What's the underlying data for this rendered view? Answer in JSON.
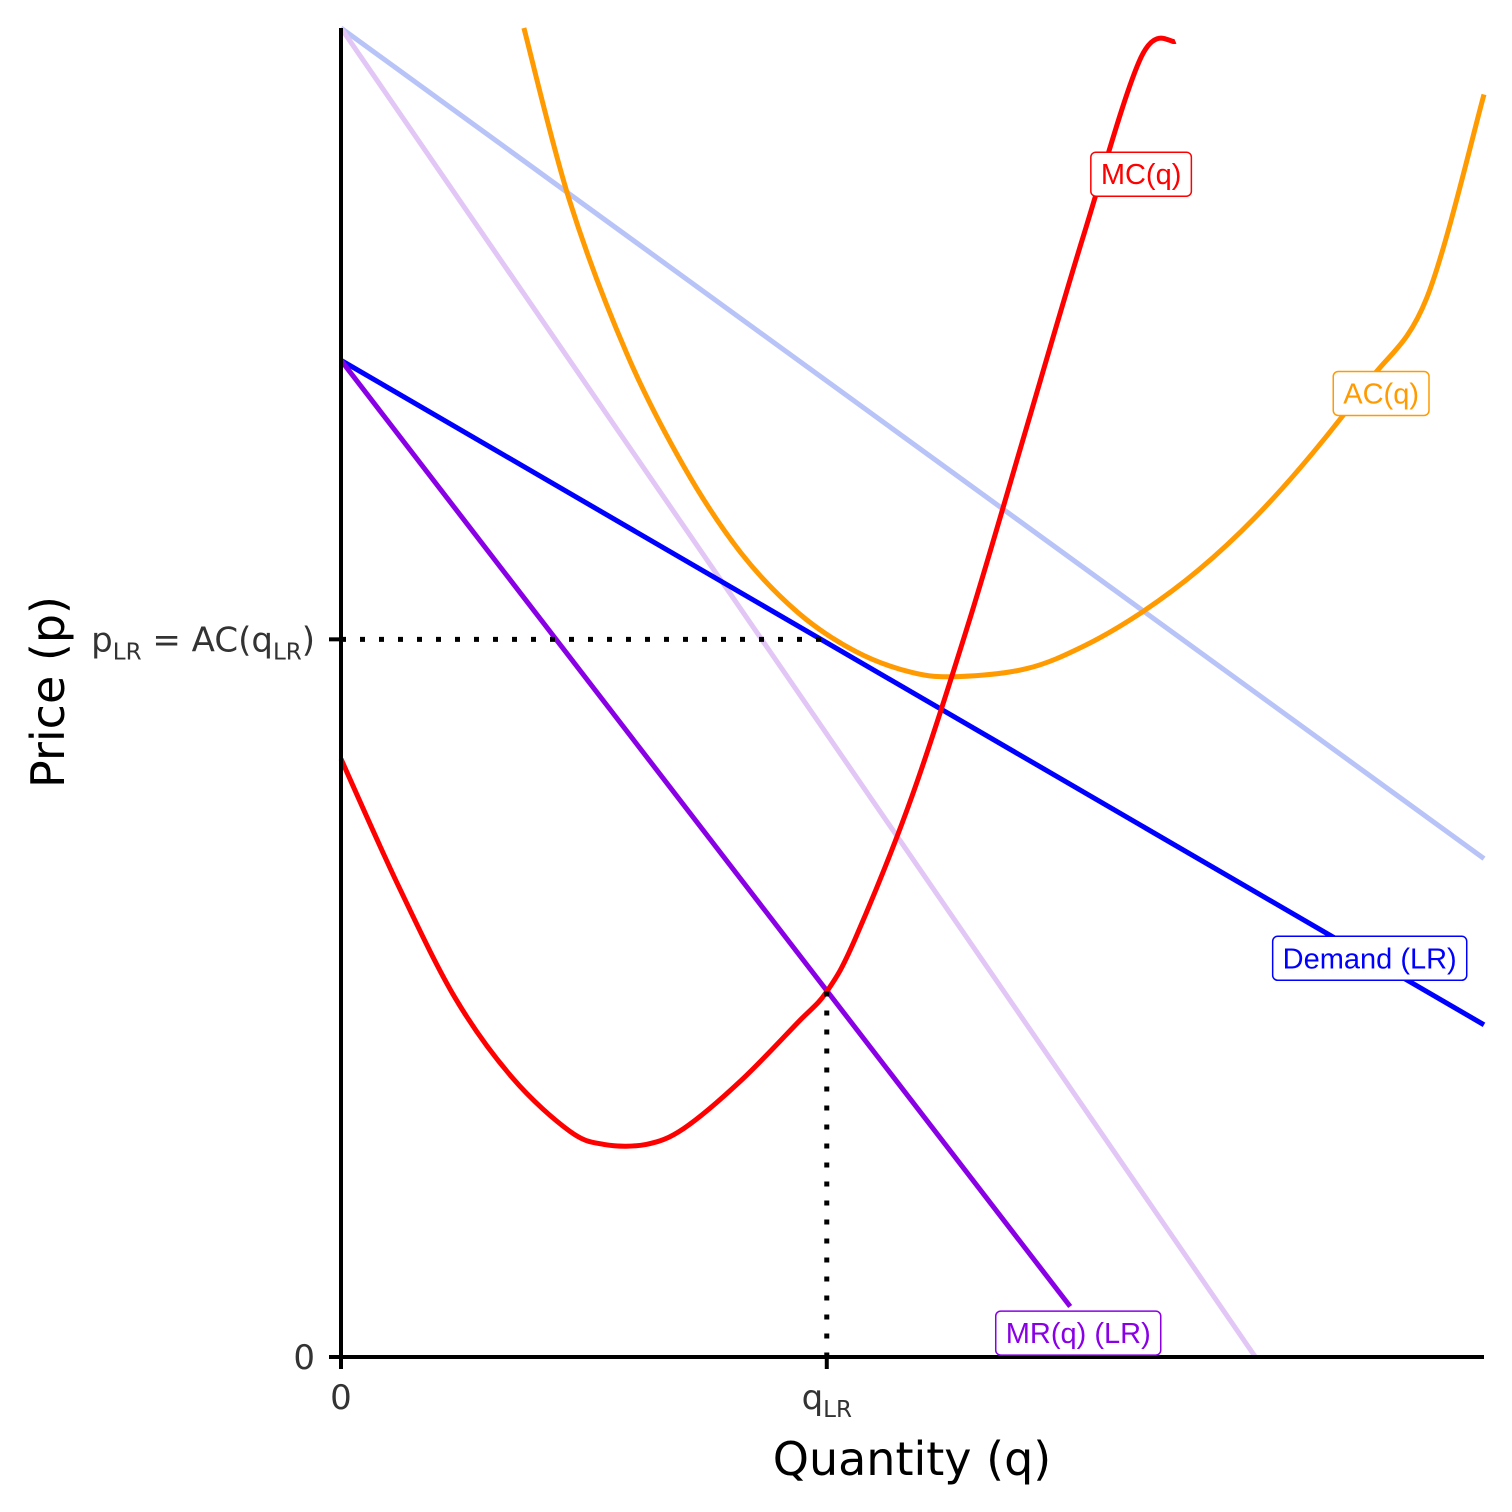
{
  "chart_data": {
    "type": "line",
    "title": "",
    "xlabel": "Quantity (q)",
    "ylabel": "Price (p)",
    "xlim": [
      0,
      10
    ],
    "ylim": [
      0,
      10
    ],
    "grid": false,
    "x_ticks": [
      {
        "value": 0,
        "main": "0",
        "sub": ""
      },
      {
        "value": 4.25,
        "main": "q",
        "sub": "LR"
      }
    ],
    "y_ticks": [
      {
        "value": 0,
        "label": "0"
      },
      {
        "value": 5.4,
        "label": "p_LR = AC(q_LR)"
      }
    ],
    "y_tick_parts": {
      "p": "p",
      "p_sub": "LR",
      "eq": " = AC(",
      "q": "q",
      "q_sub": "LR",
      "close": ")"
    },
    "reference_lines": [
      {
        "name": "p_LR",
        "from": [
          0,
          5.4
        ],
        "to": [
          4.25,
          5.4
        ],
        "style": "dotted"
      },
      {
        "name": "q_LR",
        "from": [
          4.25,
          2.75
        ],
        "to": [
          4.25,
          0
        ],
        "style": "dotted"
      }
    ],
    "series": [
      {
        "id": "demand_sr",
        "name": "",
        "color": "#b8c4f8",
        "x": [
          0,
          10
        ],
        "y": [
          10,
          3.75
        ]
      },
      {
        "id": "mr_sr",
        "name": "",
        "color": "#e2c6f5",
        "x": [
          0,
          8
        ],
        "y": [
          10,
          0
        ]
      },
      {
        "id": "demand_lr",
        "name": "Demand (LR)",
        "color": "#0000ff",
        "x": [
          0,
          10
        ],
        "y": [
          7.5,
          2.5
        ]
      },
      {
        "id": "mr_lr",
        "name": "MR(q) (LR)",
        "color": "#8a00e6",
        "x": [
          0,
          6.38
        ],
        "y": [
          7.5,
          0.38
        ]
      },
      {
        "id": "ac",
        "name": "AC(q)",
        "color": "#ff9a00",
        "x": [
          1.6,
          2.0,
          2.5,
          3.0,
          3.5,
          4.0,
          4.5,
          5.0,
          5.4,
          6.0,
          6.5,
          7.0,
          7.5,
          8.0,
          8.5,
          9.0,
          9.5,
          10.0
        ],
        "y": [
          10.0,
          8.7,
          7.55,
          6.7,
          6.05,
          5.6,
          5.31,
          5.15,
          5.12,
          5.18,
          5.35,
          5.6,
          5.92,
          6.32,
          6.8,
          7.35,
          7.97,
          9.5
        ]
      },
      {
        "id": "mc",
        "name": "MC(q)",
        "color": "#ff0000",
        "x": [
          0,
          0.5,
          1.0,
          1.5,
          2.0,
          2.3,
          2.67,
          3.0,
          3.5,
          4.0,
          4.25,
          4.5,
          5.0,
          5.5,
          6.0,
          6.5,
          7.0,
          7.3
        ],
        "y": [
          4.5,
          3.55,
          2.7,
          2.1,
          1.7,
          1.6,
          1.6,
          1.72,
          2.08,
          2.52,
          2.75,
          3.15,
          4.23,
          5.55,
          7.0,
          8.45,
          9.78,
          9.9
        ]
      }
    ],
    "labels": [
      {
        "text": "MC(q)",
        "series": "mc",
        "x": 7.0,
        "y": 8.9
      },
      {
        "text": "AC(q)",
        "series": "ac",
        "x": 9.1,
        "y": 7.25
      },
      {
        "text": "Demand (LR)",
        "series": "demand_lr",
        "x": 9.0,
        "y": 3.0
      },
      {
        "text": "MR(q) (LR)",
        "series": "mr_lr",
        "x": 6.45,
        "y": 0.18
      }
    ]
  }
}
